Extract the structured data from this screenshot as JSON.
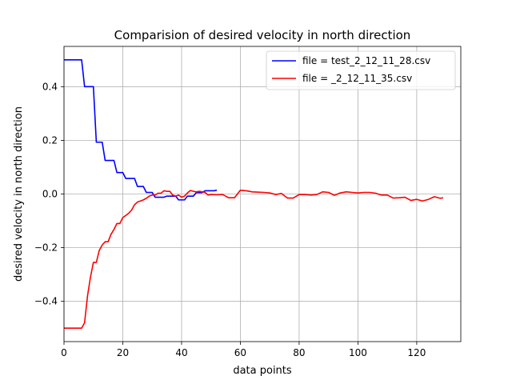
{
  "chart_data": {
    "type": "line",
    "title": "Comparision of desired velocity in north direction",
    "xlabel": "data points",
    "ylabel": "desired velocity in north direction",
    "xlim": [
      0,
      135
    ],
    "ylim": [
      -0.55,
      0.55
    ],
    "xticks": [
      0,
      20,
      40,
      60,
      80,
      100,
      120
    ],
    "yticks": [
      -0.4,
      -0.2,
      0.0,
      0.2,
      0.4
    ],
    "xtick_labels": [
      "0",
      "20",
      "40",
      "60",
      "80",
      "100",
      "120"
    ],
    "ytick_labels": [
      "−0.4",
      "−0.2",
      "0.0",
      "0.2",
      "0.4"
    ],
    "grid": true,
    "legend_position": "top-right",
    "series": [
      {
        "name": "file = test_2_12_11_28.csv",
        "color": "#0000ff",
        "x": [
          0,
          1,
          2,
          3,
          4,
          5,
          6,
          7,
          8,
          9,
          10,
          11,
          12,
          13,
          14,
          15,
          16,
          17,
          18,
          19,
          20,
          21,
          22,
          23,
          24,
          25,
          26,
          27,
          28,
          29,
          30,
          31,
          32,
          33,
          34,
          35,
          36,
          37,
          38,
          39,
          40,
          41,
          42,
          43,
          44,
          45,
          46,
          47,
          48,
          49,
          50,
          51,
          52
        ],
        "y": [
          0.5,
          0.5,
          0.5,
          0.5,
          0.5,
          0.5,
          0.5,
          0.4,
          0.4,
          0.4,
          0.4,
          0.193,
          0.193,
          0.193,
          0.125,
          0.125,
          0.125,
          0.125,
          0.08,
          0.08,
          0.08,
          0.058,
          0.058,
          0.058,
          0.058,
          0.028,
          0.028,
          0.028,
          0.006,
          0.006,
          0.006,
          -0.012,
          -0.012,
          -0.012,
          -0.012,
          -0.008,
          -0.008,
          -0.008,
          -0.008,
          -0.022,
          -0.022,
          -0.022,
          -0.008,
          -0.008,
          -0.008,
          0.005,
          0.005,
          0.005,
          0.012,
          0.012,
          0.012,
          0.012,
          0.014
        ]
      },
      {
        "name": "file = _2_12_11_35.csv",
        "color": "#ff0000",
        "x": [
          0,
          2,
          4,
          6,
          7,
          8,
          9,
          10,
          11,
          12,
          13,
          14,
          15,
          16,
          17,
          18,
          19,
          20,
          21,
          22,
          23,
          24,
          25,
          26,
          27,
          28,
          29,
          30,
          31,
          32,
          33,
          34,
          35,
          36,
          37,
          38,
          39,
          40,
          41,
          42,
          43,
          44,
          45,
          46,
          47,
          48,
          49,
          50,
          52,
          54,
          56,
          58,
          60,
          62,
          64,
          66,
          68,
          70,
          72,
          74,
          76,
          78,
          80,
          82,
          84,
          86,
          88,
          90,
          92,
          94,
          96,
          98,
          100,
          102,
          104,
          106,
          108,
          110,
          112,
          114,
          116,
          118,
          120,
          122,
          124,
          126,
          128,
          129
        ],
        "y": [
          -0.5,
          -0.5,
          -0.5,
          -0.5,
          -0.48,
          -0.38,
          -0.31,
          -0.255,
          -0.255,
          -0.21,
          -0.19,
          -0.178,
          -0.178,
          -0.15,
          -0.132,
          -0.11,
          -0.11,
          -0.088,
          -0.08,
          -0.072,
          -0.06,
          -0.04,
          -0.03,
          -0.026,
          -0.022,
          -0.016,
          -0.008,
          -0.004,
          -0.004,
          0.003,
          0.003,
          0.012,
          0.01,
          0.01,
          -0.004,
          -0.008,
          -0.004,
          -0.012,
          -0.008,
          0.004,
          0.013,
          0.01,
          0.008,
          0.01,
          0.008,
          0.006,
          -0.004,
          -0.002,
          -0.003,
          -0.002,
          -0.014,
          -0.014,
          0.014,
          0.012,
          0.008,
          0.007,
          0.006,
          0.004,
          -0.002,
          0.002,
          -0.015,
          -0.015,
          -0.002,
          -0.002,
          -0.004,
          -0.002,
          0.008,
          0.006,
          -0.005,
          0.004,
          0.008,
          0.006,
          0.004,
          0.006,
          0.006,
          0.003,
          -0.004,
          -0.004,
          -0.015,
          -0.014,
          -0.012,
          -0.024,
          -0.02,
          -0.026,
          -0.02,
          -0.01,
          -0.016,
          -0.014
        ]
      }
    ]
  }
}
